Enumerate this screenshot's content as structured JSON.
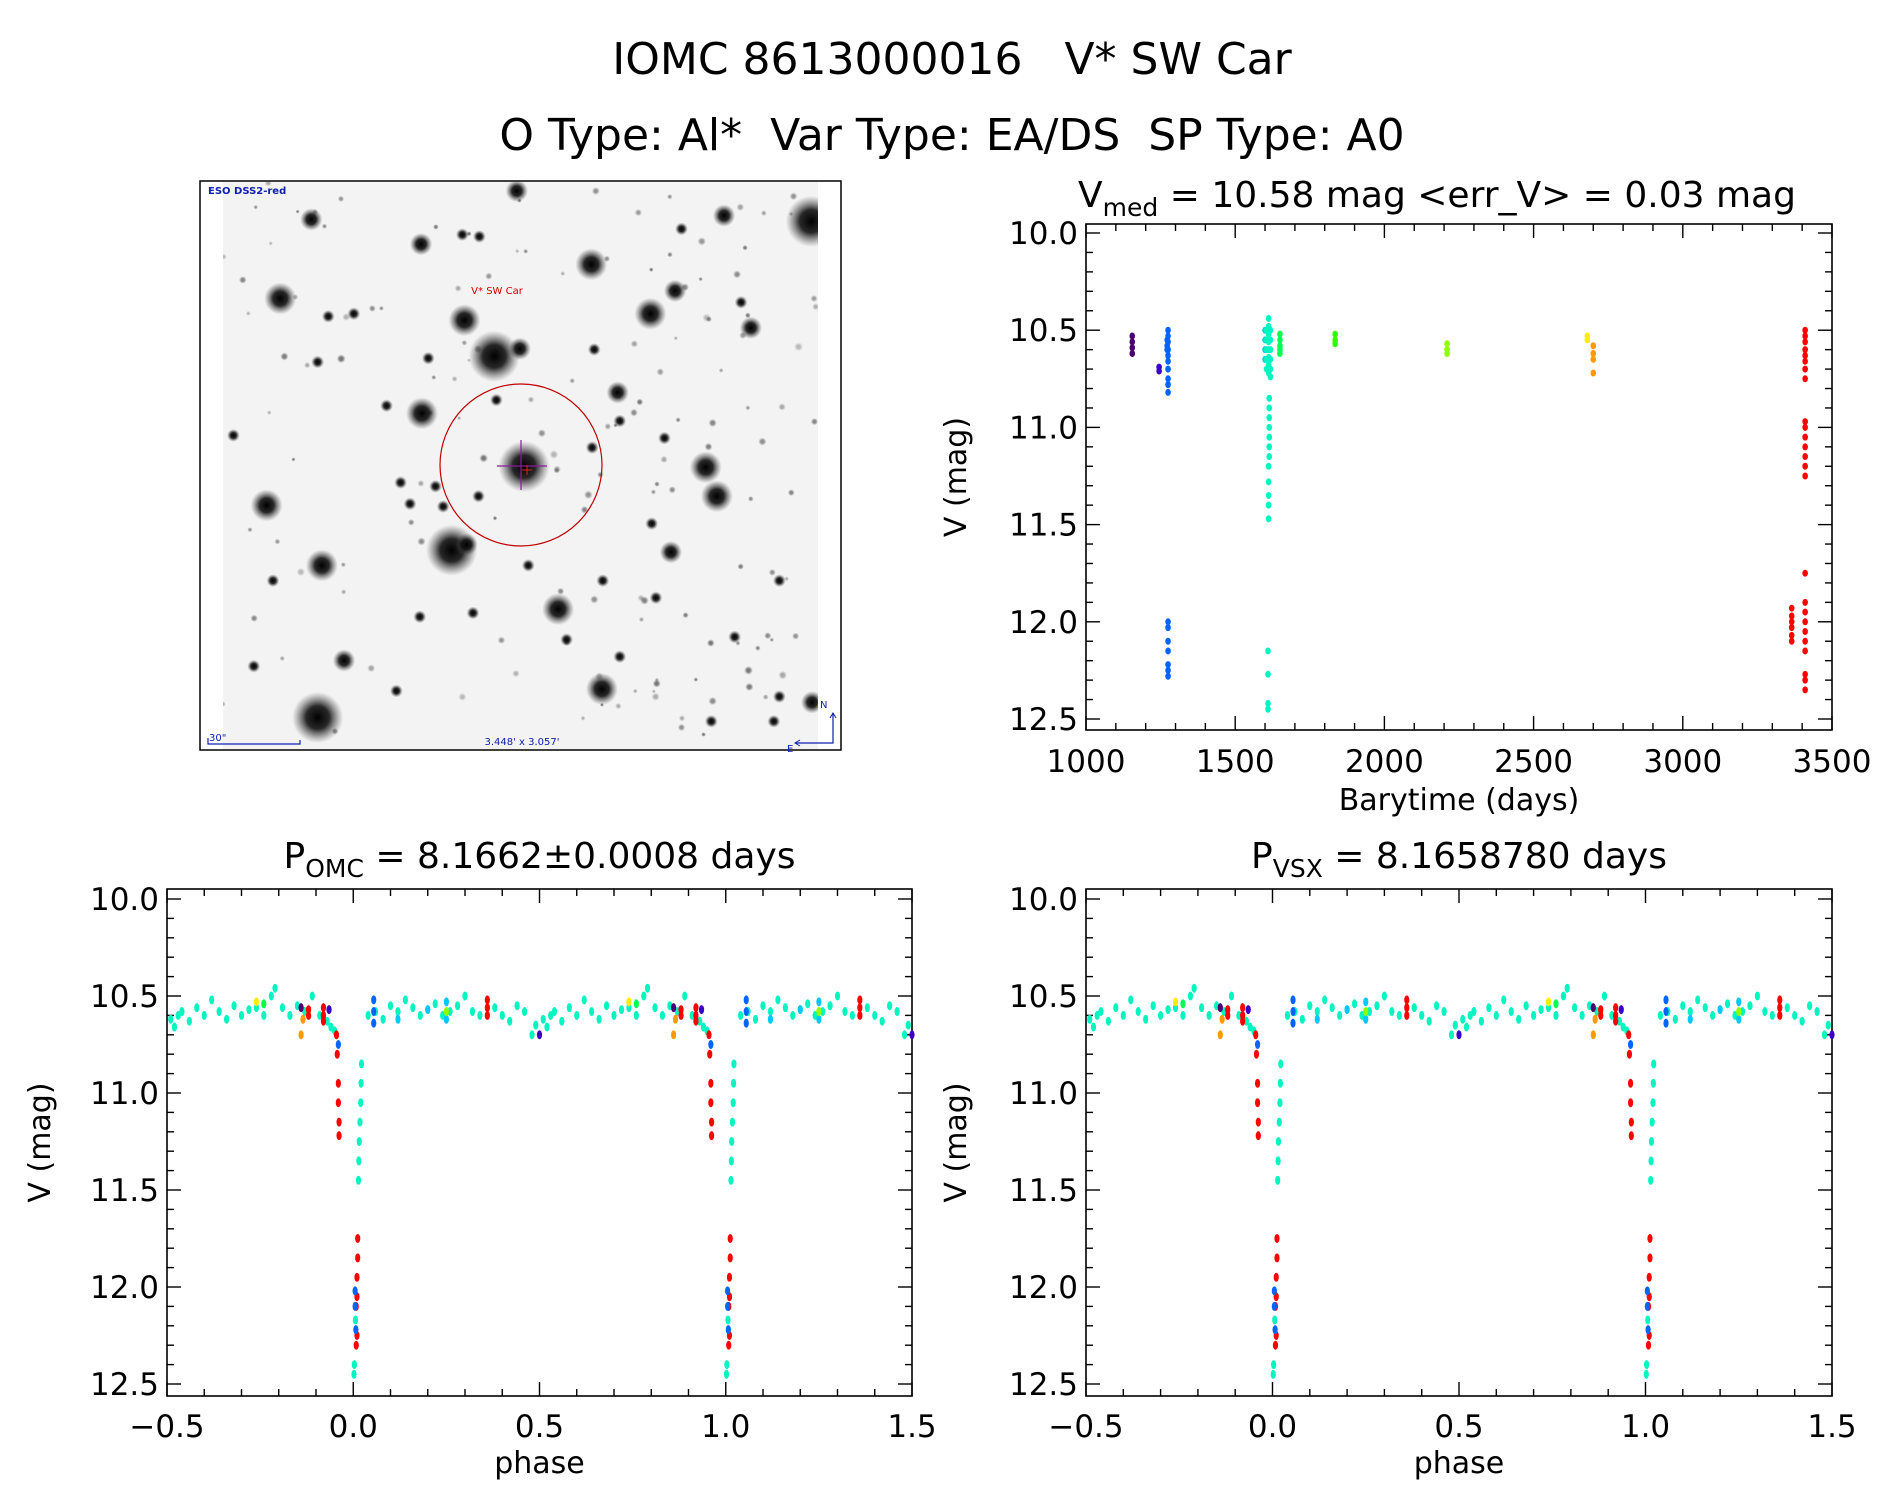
{
  "header": {
    "title": "IOMC 8613000016   V* SW Car",
    "subtitle": "O Type: Al*  Var Type: EA/DS  SP Type: A0"
  },
  "finder_image": {
    "survey_label": "ESO DSS2-red",
    "target_label": "V* SW Car",
    "scale_label": "30\"",
    "field_size_label": "3.448' x 3.057'",
    "north_label": "N",
    "east_label": "E",
    "circle_color": "#c00000",
    "label_color": "#1020b0"
  },
  "colors": {
    "pu": "#4a0070",
    "in": "#3a00c8",
    "bl": "#0064ff",
    "sk": "#00c8ff",
    "cy": "#00f5c0",
    "gr": "#00ff50",
    "li": "#30ff00",
    "ch": "#90ff00",
    "ye": "#ffee00",
    "or": "#ff9900",
    "re": "#ff0000"
  },
  "chart_data": [
    {
      "id": "lightcurve",
      "type": "scatter",
      "title": {
        "main": "V",
        "sub": "med",
        "rest": " = 10.58 mag <err_V> = 0.03 mag"
      },
      "xlabel": "Barytime (days)",
      "ylabel": "V (mag)",
      "xlim": [
        1000,
        3500
      ],
      "ylim": [
        10.0,
        12.5
      ],
      "y_reversed": true,
      "xticks": [
        "1000",
        "1500",
        "2000",
        "2500",
        "3000",
        "3500"
      ],
      "yticks": [
        "10.0",
        "10.5",
        "11.0",
        "11.5",
        "12.0",
        "12.5"
      ],
      "points": [
        [
          1155,
          10.53,
          "pu"
        ],
        [
          1155,
          10.56,
          "pu"
        ],
        [
          1155,
          10.59,
          "pu"
        ],
        [
          1155,
          10.62,
          "pu"
        ],
        [
          1245,
          10.69,
          "in"
        ],
        [
          1245,
          10.71,
          "in"
        ],
        [
          1272,
          10.55,
          "bl"
        ],
        [
          1272,
          10.58,
          "bl"
        ],
        [
          1272,
          10.6,
          "bl"
        ],
        [
          1275,
          10.5,
          "bl"
        ],
        [
          1275,
          10.53,
          "bl"
        ],
        [
          1275,
          10.56,
          "bl"
        ],
        [
          1275,
          10.6,
          "bl"
        ],
        [
          1275,
          10.63,
          "bl"
        ],
        [
          1275,
          10.66,
          "bl"
        ],
        [
          1275,
          10.7,
          "bl"
        ],
        [
          1275,
          10.75,
          "bl"
        ],
        [
          1275,
          10.78,
          "bl"
        ],
        [
          1275,
          10.82,
          "bl"
        ],
        [
          1275,
          12.0,
          "bl"
        ],
        [
          1275,
          12.03,
          "bl"
        ],
        [
          1275,
          12.1,
          "bl"
        ],
        [
          1275,
          12.15,
          "bl"
        ],
        [
          1275,
          12.22,
          "bl"
        ],
        [
          1275,
          12.25,
          "bl"
        ],
        [
          1275,
          12.28,
          "bl"
        ],
        [
          1600,
          10.5,
          "sk"
        ],
        [
          1600,
          10.55,
          "sk"
        ],
        [
          1600,
          10.6,
          "sk"
        ],
        [
          1600,
          10.65,
          "sk"
        ],
        [
          1605,
          10.5,
          "cy"
        ],
        [
          1605,
          10.55,
          "cy"
        ],
        [
          1605,
          10.6,
          "cy"
        ],
        [
          1605,
          10.65,
          "cy"
        ],
        [
          1605,
          10.7,
          "cy"
        ],
        [
          1612,
          10.44,
          "cy"
        ],
        [
          1612,
          10.48,
          "cy"
        ],
        [
          1612,
          10.52,
          "cy"
        ],
        [
          1612,
          10.56,
          "cy"
        ],
        [
          1612,
          10.6,
          "cy"
        ],
        [
          1612,
          10.64,
          "cy"
        ],
        [
          1612,
          10.68,
          "cy"
        ],
        [
          1612,
          10.72,
          "cy"
        ],
        [
          1618,
          10.5,
          "cy"
        ],
        [
          1618,
          10.55,
          "cy"
        ],
        [
          1618,
          10.6,
          "cy"
        ],
        [
          1618,
          10.65,
          "cy"
        ],
        [
          1618,
          10.7,
          "cy"
        ],
        [
          1618,
          10.74,
          "cy"
        ],
        [
          1614,
          10.85,
          "cy"
        ],
        [
          1614,
          10.9,
          "cy"
        ],
        [
          1614,
          10.95,
          "cy"
        ],
        [
          1614,
          11.0,
          "cy"
        ],
        [
          1614,
          11.05,
          "cy"
        ],
        [
          1614,
          11.1,
          "cy"
        ],
        [
          1614,
          11.15,
          "cy"
        ],
        [
          1612,
          11.2,
          "cy"
        ],
        [
          1612,
          11.28,
          "cy"
        ],
        [
          1612,
          11.35,
          "cy"
        ],
        [
          1612,
          11.4,
          "cy"
        ],
        [
          1612,
          11.47,
          "cy"
        ],
        [
          1610,
          12.15,
          "cy"
        ],
        [
          1610,
          12.27,
          "cy"
        ],
        [
          1610,
          12.42,
          "cy"
        ],
        [
          1610,
          12.45,
          "cy"
        ],
        [
          1650,
          10.52,
          "gr"
        ],
        [
          1650,
          10.55,
          "gr"
        ],
        [
          1650,
          10.58,
          "gr"
        ],
        [
          1650,
          10.6,
          "gr"
        ],
        [
          1650,
          10.62,
          "gr"
        ],
        [
          1835,
          10.52,
          "li"
        ],
        [
          1835,
          10.55,
          "li"
        ],
        [
          1835,
          10.57,
          "li"
        ],
        [
          2210,
          10.57,
          "ch"
        ],
        [
          2210,
          10.6,
          "ch"
        ],
        [
          2210,
          10.62,
          "ch"
        ],
        [
          2680,
          10.53,
          "ye"
        ],
        [
          2680,
          10.55,
          "ye"
        ],
        [
          2700,
          10.58,
          "or"
        ],
        [
          2700,
          10.62,
          "or"
        ],
        [
          2700,
          10.65,
          "or"
        ],
        [
          2700,
          10.72,
          "or"
        ],
        [
          3410,
          10.5,
          "re"
        ],
        [
          3410,
          10.53,
          "re"
        ],
        [
          3410,
          10.56,
          "re"
        ],
        [
          3410,
          10.6,
          "re"
        ],
        [
          3410,
          10.63,
          "re"
        ],
        [
          3410,
          10.66,
          "re"
        ],
        [
          3410,
          10.7,
          "re"
        ],
        [
          3410,
          10.75,
          "re"
        ],
        [
          3410,
          10.97,
          "re"
        ],
        [
          3410,
          11.0,
          "re"
        ],
        [
          3410,
          11.05,
          "re"
        ],
        [
          3410,
          11.1,
          "re"
        ],
        [
          3410,
          11.15,
          "re"
        ],
        [
          3410,
          11.2,
          "re"
        ],
        [
          3410,
          11.25,
          "re"
        ],
        [
          3410,
          11.75,
          "re"
        ],
        [
          3410,
          11.9,
          "re"
        ],
        [
          3410,
          11.95,
          "re"
        ],
        [
          3410,
          12.0,
          "re"
        ],
        [
          3410,
          12.05,
          "re"
        ],
        [
          3410,
          12.1,
          "re"
        ],
        [
          3410,
          12.15,
          "re"
        ],
        [
          3410,
          12.27,
          "re"
        ],
        [
          3410,
          12.3,
          "re"
        ],
        [
          3410,
          12.35,
          "re"
        ],
        [
          3365,
          11.93,
          "re"
        ],
        [
          3365,
          11.97,
          "re"
        ],
        [
          3365,
          12.0,
          "re"
        ],
        [
          3365,
          12.03,
          "re"
        ],
        [
          3365,
          12.07,
          "re"
        ],
        [
          3365,
          12.1,
          "re"
        ]
      ]
    },
    {
      "id": "phase_omc",
      "type": "scatter",
      "title": {
        "main": "P",
        "sub": "OMC",
        "rest": " = 8.1662±0.0008 days"
      },
      "xlabel": "phase",
      "ylabel": "V (mag)",
      "xlim": [
        -0.5,
        1.5
      ],
      "ylim": [
        10.0,
        12.5
      ],
      "y_reversed": true,
      "phase_repeat": 1,
      "xticks": [
        "−0.5",
        "0.0",
        "0.5",
        "1.0",
        "1.5"
      ],
      "yticks": [
        "10.0",
        "10.5",
        "11.0",
        "11.5",
        "12.0",
        "12.5"
      ],
      "points_source": "phase_points"
    },
    {
      "id": "phase_vsx",
      "type": "scatter",
      "title": {
        "main": "P",
        "sub": "VSX",
        "rest": " = 8.1658780 days"
      },
      "xlabel": "phase",
      "ylabel": "V (mag)",
      "xlim": [
        -0.5,
        1.5
      ],
      "ylim": [
        10.0,
        12.5
      ],
      "y_reversed": true,
      "phase_repeat": 1,
      "xticks": [
        "−0.5",
        "0.0",
        "0.5",
        "1.0",
        "1.5"
      ],
      "yticks": [
        "10.0",
        "10.5",
        "11.0",
        "11.5",
        "12.0",
        "12.5"
      ],
      "points_source": "phase_points"
    }
  ],
  "phase_points": [
    [
      -0.49,
      10.62,
      "cy"
    ],
    [
      -0.48,
      10.66,
      "cy"
    ],
    [
      -0.47,
      10.6,
      "cy"
    ],
    [
      -0.46,
      10.58,
      "cy"
    ],
    [
      -0.44,
      10.63,
      "cy"
    ],
    [
      -0.42,
      10.56,
      "cy"
    ],
    [
      -0.4,
      10.6,
      "cy"
    ],
    [
      -0.38,
      10.52,
      "cy"
    ],
    [
      -0.36,
      10.58,
      "cy"
    ],
    [
      -0.34,
      10.62,
      "cy"
    ],
    [
      -0.32,
      10.55,
      "cy"
    ],
    [
      -0.3,
      10.6,
      "cy"
    ],
    [
      -0.28,
      10.57,
      "cy"
    ],
    [
      -0.26,
      10.56,
      "cy"
    ],
    [
      -0.24,
      10.6,
      "cy"
    ],
    [
      -0.22,
      10.5,
      "cy"
    ],
    [
      -0.21,
      10.46,
      "cy"
    ],
    [
      -0.19,
      10.56,
      "cy"
    ],
    [
      -0.17,
      10.6,
      "cy"
    ],
    [
      -0.15,
      10.55,
      "cy"
    ],
    [
      -0.13,
      10.58,
      "cy"
    ],
    [
      -0.11,
      10.5,
      "cy"
    ],
    [
      -0.09,
      10.6,
      "cy"
    ],
    [
      -0.07,
      10.63,
      "cy"
    ],
    [
      -0.06,
      10.66,
      "cy"
    ],
    [
      -0.05,
      10.68,
      "cy"
    ],
    [
      0.04,
      10.6,
      "cy"
    ],
    [
      0.06,
      10.58,
      "cy"
    ],
    [
      0.08,
      10.62,
      "cy"
    ],
    [
      0.1,
      10.55,
      "cy"
    ],
    [
      0.12,
      10.58,
      "cy"
    ],
    [
      0.14,
      10.52,
      "cy"
    ],
    [
      0.16,
      10.56,
      "cy"
    ],
    [
      0.18,
      10.6,
      "cy"
    ],
    [
      0.2,
      10.57,
      "cy"
    ],
    [
      0.22,
      10.54,
      "cy"
    ],
    [
      0.24,
      10.6,
      "cy"
    ],
    [
      0.26,
      10.58,
      "cy"
    ],
    [
      0.28,
      10.55,
      "cy"
    ],
    [
      0.3,
      10.5,
      "cy"
    ],
    [
      0.32,
      10.58,
      "cy"
    ],
    [
      0.34,
      10.6,
      "cy"
    ],
    [
      0.38,
      10.56,
      "cy"
    ],
    [
      0.4,
      10.6,
      "cy"
    ],
    [
      0.42,
      10.63,
      "cy"
    ],
    [
      0.44,
      10.55,
      "cy"
    ],
    [
      0.46,
      10.58,
      "cy"
    ],
    [
      0.48,
      10.7,
      "cy"
    ],
    [
      0.49,
      10.65,
      "cy"
    ],
    [
      -0.12,
      10.57,
      "re"
    ],
    [
      -0.12,
      10.6,
      "re"
    ],
    [
      -0.08,
      10.56,
      "re"
    ],
    [
      -0.08,
      10.6,
      "re"
    ],
    [
      -0.08,
      10.63,
      "re"
    ],
    [
      0.36,
      10.52,
      "re"
    ],
    [
      0.36,
      10.56,
      "re"
    ],
    [
      0.36,
      10.6,
      "re"
    ],
    [
      0.055,
      10.52,
      "bl"
    ],
    [
      0.055,
      10.58,
      "bl"
    ],
    [
      0.055,
      10.64,
      "bl"
    ],
    [
      -0.065,
      10.57,
      "in"
    ],
    [
      0.2,
      10.57,
      "sk"
    ],
    [
      0.25,
      10.53,
      "sk"
    ],
    [
      0.25,
      10.62,
      "sk"
    ],
    [
      0.12,
      10.62,
      "sk"
    ],
    [
      0.5,
      10.7,
      "in"
    ],
    [
      -0.14,
      10.56,
      "pu"
    ],
    [
      -0.26,
      10.53,
      "ye"
    ],
    [
      -0.24,
      10.54,
      "gr"
    ],
    [
      -0.14,
      10.7,
      "or"
    ],
    [
      -0.135,
      10.62,
      "or"
    ],
    [
      0.25,
      10.58,
      "ch"
    ],
    [
      -0.045,
      10.7,
      "re"
    ],
    [
      -0.043,
      10.8,
      "re"
    ],
    [
      -0.04,
      10.95,
      "re"
    ],
    [
      -0.04,
      11.05,
      "re"
    ],
    [
      -0.038,
      11.15,
      "re"
    ],
    [
      -0.038,
      11.22,
      "re"
    ],
    [
      0.012,
      11.75,
      "re"
    ],
    [
      0.012,
      11.85,
      "re"
    ],
    [
      0.01,
      11.95,
      "re"
    ],
    [
      0.01,
      12.05,
      "re"
    ],
    [
      0.008,
      12.1,
      "re"
    ],
    [
      0.01,
      12.25,
      "re"
    ],
    [
      0.008,
      12.3,
      "re"
    ],
    [
      -0.04,
      10.75,
      "bl"
    ],
    [
      0.005,
      12.02,
      "bl"
    ],
    [
      0.005,
      12.1,
      "bl"
    ],
    [
      0.007,
      12.22,
      "bl"
    ],
    [
      0.022,
      10.85,
      "cy"
    ],
    [
      0.021,
      10.95,
      "cy"
    ],
    [
      0.02,
      11.05,
      "cy"
    ],
    [
      0.018,
      11.15,
      "cy"
    ],
    [
      0.016,
      11.25,
      "cy"
    ],
    [
      0.015,
      11.35,
      "cy"
    ],
    [
      0.014,
      11.45,
      "cy"
    ],
    [
      0.006,
      12.17,
      "cy"
    ],
    [
      0.003,
      12.4,
      "cy"
    ],
    [
      0.002,
      12.45,
      "cy"
    ]
  ]
}
